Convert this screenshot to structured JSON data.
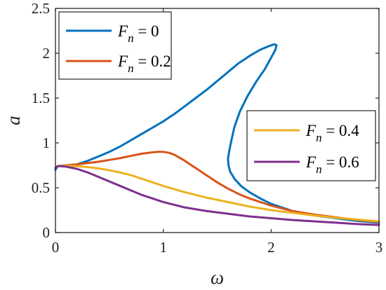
{
  "chart_data": {
    "type": "line",
    "xlabel": "ω",
    "ylabel": "a",
    "xlim": [
      0,
      3
    ],
    "ylim": [
      0,
      2.5
    ],
    "xticks": [
      "0",
      "1",
      "2",
      "3"
    ],
    "yticks": [
      "0",
      "0.5",
      "1",
      "1.5",
      "2",
      "2.5"
    ],
    "grid": false,
    "legends": [
      {
        "placement": "top-left",
        "entries": [
          0,
          1
        ]
      },
      {
        "placement": "middle-right",
        "entries": [
          2,
          3
        ]
      }
    ],
    "series": [
      {
        "name_symbol": "F",
        "name_sub": "n",
        "name_value": "= 0",
        "color": "#0072BD",
        "x": [
          0.0,
          0.02,
          0.05,
          0.1,
          0.2,
          0.3,
          0.4,
          0.5,
          0.6,
          0.7,
          0.8,
          0.9,
          1.0,
          1.1,
          1.2,
          1.3,
          1.4,
          1.5,
          1.6,
          1.7,
          1.8,
          1.9,
          1.98,
          2.03,
          2.05,
          2.04,
          2.0,
          1.94,
          1.86,
          1.78,
          1.71,
          1.66,
          1.63,
          1.61,
          1.6,
          1.605,
          1.62,
          1.66,
          1.72,
          1.8,
          1.9,
          2.0,
          2.2,
          2.4,
          2.6,
          2.8,
          3.0
        ],
        "y": [
          0.7,
          0.74,
          0.745,
          0.75,
          0.76,
          0.8,
          0.85,
          0.9,
          0.96,
          1.03,
          1.1,
          1.17,
          1.24,
          1.32,
          1.41,
          1.5,
          1.59,
          1.69,
          1.79,
          1.89,
          1.97,
          2.04,
          2.08,
          2.1,
          2.09,
          2.04,
          1.95,
          1.82,
          1.68,
          1.52,
          1.35,
          1.18,
          1.02,
          0.9,
          0.82,
          0.75,
          0.68,
          0.6,
          0.52,
          0.45,
          0.38,
          0.32,
          0.24,
          0.19,
          0.16,
          0.13,
          0.11
        ]
      },
      {
        "name_symbol": "F",
        "name_sub": "n",
        "name_value": "= 0.2",
        "color": "#D95319",
        "x": [
          0.0,
          0.02,
          0.05,
          0.1,
          0.2,
          0.3,
          0.4,
          0.5,
          0.6,
          0.7,
          0.8,
          0.9,
          0.95,
          1.0,
          1.05,
          1.1,
          1.2,
          1.3,
          1.4,
          1.5,
          1.6,
          1.7,
          1.8,
          1.9,
          2.0,
          2.2,
          2.4,
          2.6,
          2.8,
          3.0
        ],
        "y": [
          0.72,
          0.74,
          0.745,
          0.75,
          0.76,
          0.775,
          0.79,
          0.81,
          0.83,
          0.855,
          0.88,
          0.895,
          0.9,
          0.9,
          0.89,
          0.87,
          0.8,
          0.72,
          0.64,
          0.56,
          0.49,
          0.43,
          0.38,
          0.34,
          0.3,
          0.24,
          0.2,
          0.17,
          0.14,
          0.12
        ]
      },
      {
        "name_symbol": "F",
        "name_sub": "n",
        "name_value": "= 0.4",
        "color": "#EDB120",
        "x": [
          0.0,
          0.02,
          0.05,
          0.1,
          0.2,
          0.3,
          0.4,
          0.5,
          0.6,
          0.7,
          0.8,
          0.9,
          1.0,
          1.2,
          1.4,
          1.6,
          1.8,
          2.0,
          2.2,
          2.4,
          2.6,
          2.8,
          3.0
        ],
        "y": [
          0.72,
          0.74,
          0.745,
          0.745,
          0.74,
          0.73,
          0.715,
          0.695,
          0.67,
          0.64,
          0.6,
          0.56,
          0.52,
          0.45,
          0.39,
          0.34,
          0.29,
          0.25,
          0.22,
          0.19,
          0.165,
          0.145,
          0.125
        ]
      },
      {
        "name_symbol": "F",
        "name_sub": "n",
        "name_value": "= 0.6",
        "color": "#7E2F8E",
        "x": [
          0.0,
          0.02,
          0.05,
          0.1,
          0.2,
          0.3,
          0.4,
          0.5,
          0.6,
          0.7,
          0.8,
          0.9,
          1.0,
          1.2,
          1.4,
          1.6,
          1.8,
          2.0,
          2.2,
          2.4,
          2.6,
          2.8,
          3.0
        ],
        "y": [
          0.72,
          0.74,
          0.74,
          0.735,
          0.71,
          0.67,
          0.62,
          0.57,
          0.52,
          0.47,
          0.42,
          0.38,
          0.34,
          0.28,
          0.24,
          0.21,
          0.18,
          0.16,
          0.14,
          0.125,
          0.11,
          0.095,
          0.085
        ]
      }
    ]
  }
}
